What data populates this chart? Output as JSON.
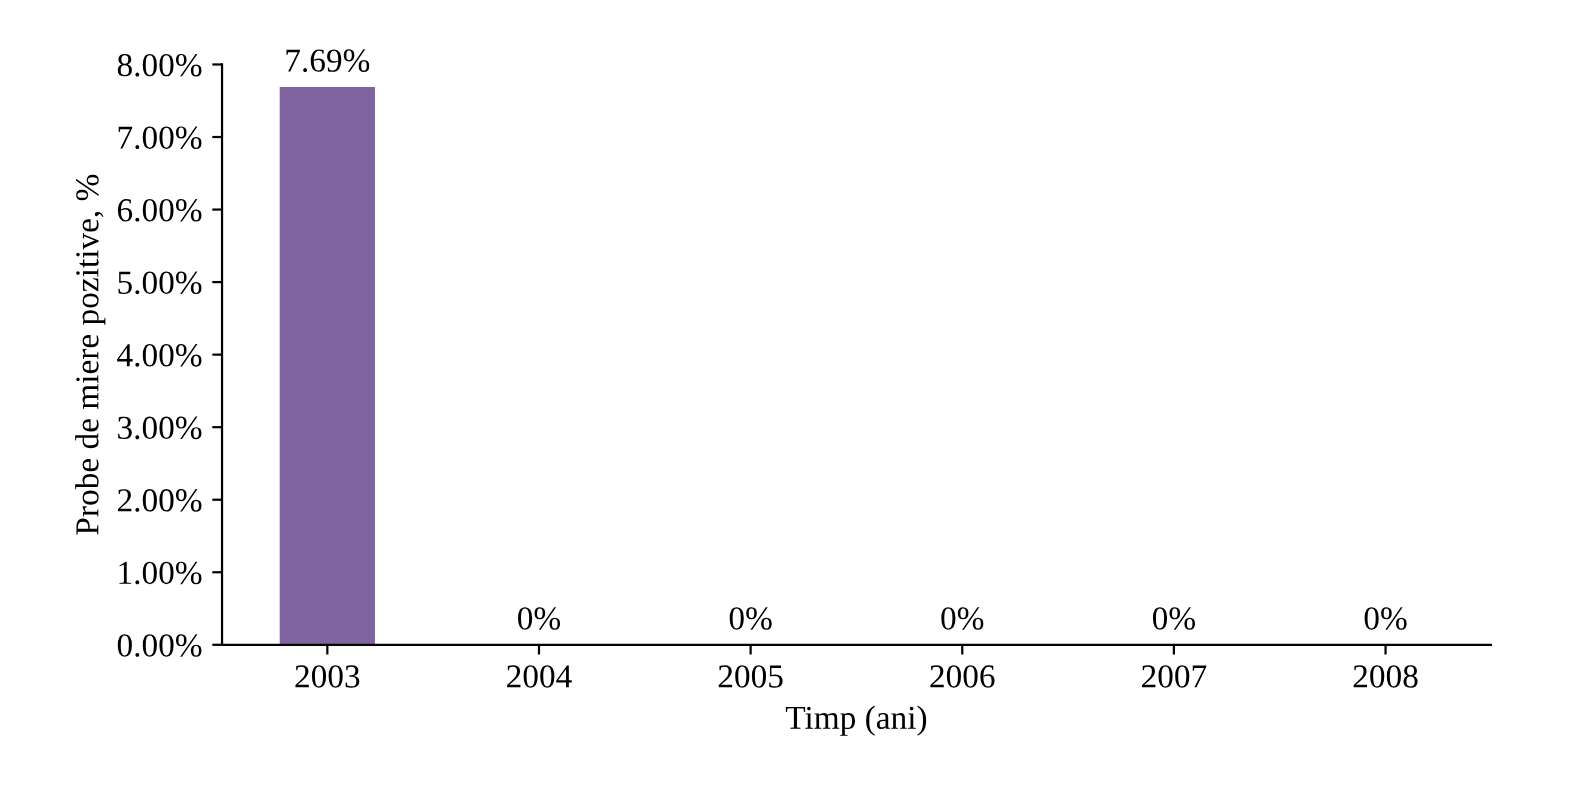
{
  "chart_data": {
    "type": "bar",
    "xlabel": "Timp (ani)",
    "ylabel": "Probe de miere pozitive, %",
    "categories": [
      "2003",
      "2004",
      "2005",
      "2006",
      "2007",
      "2008"
    ],
    "values": [
      7.69,
      0,
      0,
      0,
      0,
      0
    ],
    "value_labels": [
      "7.69%",
      "0%",
      "0%",
      "0%",
      "0%",
      "0%"
    ],
    "color": "#8064a2",
    "ylim": [
      0,
      8
    ],
    "yticks": [
      {
        "value": 0,
        "label": "0.00%"
      },
      {
        "value": 1,
        "label": "1.00%"
      },
      {
        "value": 2,
        "label": "2.00%"
      },
      {
        "value": 3,
        "label": "3.00%"
      },
      {
        "value": 4,
        "label": "4.00%"
      },
      {
        "value": 5,
        "label": "5.00%"
      },
      {
        "value": 6,
        "label": "6.00%"
      },
      {
        "value": 7,
        "label": "7.00%"
      },
      {
        "value": 8,
        "label": "8.00%"
      }
    ],
    "grid": false
  }
}
